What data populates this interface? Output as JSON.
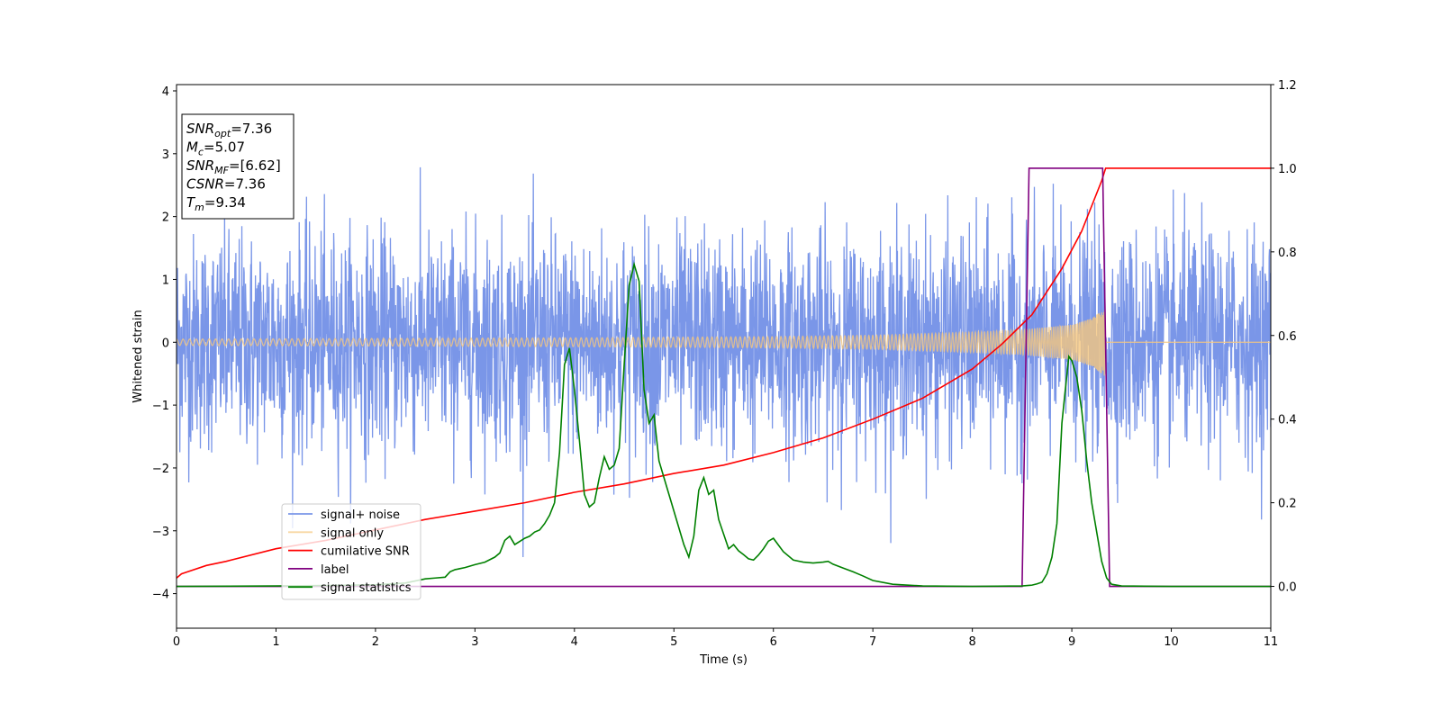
{
  "chart_data": {
    "type": "line",
    "title": "",
    "xlabel": "Time (s)",
    "ylabel": "Whitened strain",
    "y2label": "",
    "xlim": [
      0,
      11
    ],
    "ylim": [
      -4.55,
      4.1
    ],
    "y2lim": [
      -0.1,
      1.2
    ],
    "x_ticks": [
      0,
      1,
      2,
      3,
      4,
      5,
      6,
      7,
      8,
      9,
      10,
      11
    ],
    "x_tick_labels": [
      "0",
      "1",
      "2",
      "3",
      "4",
      "5",
      "6",
      "7",
      "8",
      "9",
      "10",
      "11"
    ],
    "y_ticks": [
      -4,
      -3,
      -2,
      -1,
      0,
      1,
      2,
      3,
      4
    ],
    "y_tick_labels": [
      "−4",
      "−3",
      "−2",
      "−1",
      "0",
      "1",
      "2",
      "3",
      "4"
    ],
    "y2_ticks": [
      0.0,
      0.2,
      0.4,
      0.6,
      0.8,
      1.0,
      1.2
    ],
    "y2_tick_labels": [
      "0.0",
      "0.2",
      "0.4",
      "0.6",
      "0.8",
      "1.0",
      "1.2"
    ],
    "grid": false,
    "legend_position": "lower-left",
    "info_box": {
      "lines": [
        {
          "base": "SNR",
          "sub": "opt",
          "value": "=7.36"
        },
        {
          "base": "M",
          "sub": "c",
          "value": "=5.07"
        },
        {
          "base": "SNR",
          "sub": "MF",
          "value": "=[6.62]"
        },
        {
          "base": "CSNR",
          "sub": "",
          "value": "=7.36"
        },
        {
          "base": "T",
          "sub": "m",
          "value": "=9.34"
        }
      ]
    },
    "series": [
      {
        "name": "signal+ noise",
        "axis": "left",
        "color": "#7a96e8",
        "kind": "noise",
        "description_values": {
          "amplitude_std": 0.85,
          "min": -4.15,
          "max": 3.65
        }
      },
      {
        "name": "signal only",
        "axis": "left",
        "color": "#f5c77e",
        "kind": "chirp",
        "merger_time": 9.34,
        "envelope": [
          [
            0,
            0.05
          ],
          [
            2,
            0.06
          ],
          [
            4,
            0.07
          ],
          [
            6,
            0.09
          ],
          [
            7,
            0.11
          ],
          [
            8,
            0.16
          ],
          [
            8.5,
            0.2
          ],
          [
            9,
            0.28
          ],
          [
            9.2,
            0.38
          ],
          [
            9.3,
            0.5
          ],
          [
            9.34,
            0.55
          ]
        ]
      },
      {
        "name": "cumilative SNR",
        "axis": "right",
        "color": "#ff0000",
        "x": [
          0,
          0.05,
          0.3,
          0.5,
          1,
          1.5,
          2,
          2.5,
          3,
          3.5,
          4,
          4.5,
          5,
          5.5,
          6,
          6.5,
          7,
          7.5,
          8,
          8.3,
          8.6,
          8.9,
          9.1,
          9.2,
          9.3,
          9.34,
          11
        ],
        "y": [
          0.02,
          0.03,
          0.05,
          0.06,
          0.09,
          0.11,
          0.135,
          0.16,
          0.18,
          0.2,
          0.225,
          0.245,
          0.27,
          0.29,
          0.32,
          0.355,
          0.4,
          0.45,
          0.52,
          0.58,
          0.65,
          0.76,
          0.85,
          0.91,
          0.97,
          1.0,
          1.0
        ]
      },
      {
        "name": "label",
        "axis": "right",
        "color": "#800080",
        "x": [
          0,
          8.5,
          8.57,
          9.31,
          9.38,
          11
        ],
        "y": [
          0,
          0,
          1,
          1,
          0,
          0
        ]
      },
      {
        "name": "signal statistics",
        "axis": "right",
        "color": "#008000",
        "x": [
          0,
          1,
          1.5,
          2,
          2.3,
          2.5,
          2.6,
          2.7,
          2.75,
          2.8,
          2.9,
          3.0,
          3.1,
          3.2,
          3.25,
          3.3,
          3.35,
          3.4,
          3.5,
          3.55,
          3.6,
          3.65,
          3.7,
          3.75,
          3.8,
          3.85,
          3.9,
          3.95,
          4.0,
          4.05,
          4.1,
          4.15,
          4.2,
          4.25,
          4.3,
          4.35,
          4.4,
          4.45,
          4.5,
          4.55,
          4.6,
          4.65,
          4.7,
          4.75,
          4.8,
          4.85,
          4.9,
          5.0,
          5.1,
          5.15,
          5.2,
          5.25,
          5.3,
          5.35,
          5.4,
          5.45,
          5.5,
          5.55,
          5.6,
          5.65,
          5.7,
          5.75,
          5.8,
          5.85,
          5.9,
          5.95,
          6.0,
          6.1,
          6.2,
          6.3,
          6.4,
          6.5,
          6.55,
          6.6,
          6.7,
          6.8,
          6.9,
          7.0,
          7.2,
          7.5,
          8.0,
          8.5,
          8.6,
          8.65,
          8.7,
          8.75,
          8.8,
          8.85,
          8.9,
          8.93,
          8.97,
          9.0,
          9.05,
          9.1,
          9.15,
          9.2,
          9.25,
          9.3,
          9.35,
          9.4,
          9.5,
          10,
          11
        ],
        "y": [
          0,
          0.001,
          0.002,
          0.004,
          0.008,
          0.018,
          0.02,
          0.022,
          0.035,
          0.04,
          0.045,
          0.052,
          0.058,
          0.07,
          0.08,
          0.11,
          0.12,
          0.1,
          0.115,
          0.12,
          0.13,
          0.135,
          0.15,
          0.17,
          0.2,
          0.32,
          0.53,
          0.57,
          0.47,
          0.35,
          0.22,
          0.19,
          0.2,
          0.26,
          0.31,
          0.28,
          0.29,
          0.33,
          0.53,
          0.72,
          0.77,
          0.73,
          0.47,
          0.39,
          0.41,
          0.3,
          0.26,
          0.18,
          0.1,
          0.07,
          0.12,
          0.23,
          0.26,
          0.22,
          0.23,
          0.16,
          0.125,
          0.09,
          0.1,
          0.085,
          0.076,
          0.066,
          0.063,
          0.075,
          0.09,
          0.108,
          0.115,
          0.083,
          0.063,
          0.058,
          0.056,
          0.058,
          0.06,
          0.053,
          0.044,
          0.035,
          0.025,
          0.014,
          0.005,
          0.001,
          0,
          0.001,
          0.003,
          0.006,
          0.01,
          0.03,
          0.07,
          0.15,
          0.39,
          0.46,
          0.55,
          0.54,
          0.5,
          0.42,
          0.3,
          0.2,
          0.13,
          0.06,
          0.02,
          0.005,
          0.001,
          0,
          0
        ]
      }
    ]
  }
}
